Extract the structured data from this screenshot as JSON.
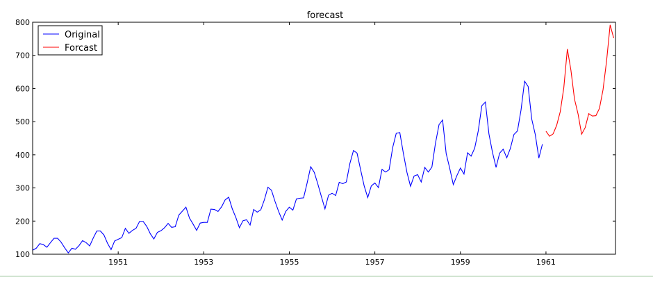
{
  "chart_data": {
    "type": "line",
    "title": "forecast",
    "xlabel": "",
    "ylabel": "",
    "xlim": [
      1949.0,
      1962.625
    ],
    "ylim": [
      100,
      800
    ],
    "x_ticks": [
      1951,
      1953,
      1955,
      1957,
      1959,
      1961
    ],
    "x_tick_labels": [
      "1951",
      "1953",
      "1955",
      "1957",
      "1959",
      "1961"
    ],
    "y_ticks": [
      100,
      200,
      300,
      400,
      500,
      600,
      700,
      800
    ],
    "y_tick_labels": [
      "100",
      "200",
      "300",
      "400",
      "500",
      "600",
      "700",
      "800"
    ],
    "grid": false,
    "legend_position": "top-left",
    "series": [
      {
        "name": "Original",
        "color": "#0000ff",
        "x_start": 1949.0,
        "x_step": 0.0833333,
        "values": [
          112,
          118,
          132,
          129,
          121,
          135,
          148,
          148,
          136,
          119,
          104,
          118,
          115,
          126,
          141,
          135,
          125,
          149,
          170,
          170,
          158,
          133,
          114,
          140,
          145,
          150,
          178,
          163,
          172,
          178,
          199,
          199,
          184,
          162,
          146,
          166,
          171,
          180,
          193,
          181,
          183,
          218,
          230,
          242,
          209,
          191,
          172,
          194,
          196,
          196,
          236,
          235,
          229,
          243,
          264,
          272,
          237,
          211,
          180,
          201,
          204,
          188,
          235,
          227,
          234,
          264,
          302,
          293,
          259,
          229,
          203,
          229,
          242,
          233,
          267,
          269,
          270,
          315,
          364,
          347,
          312,
          274,
          237,
          278,
          284,
          277,
          317,
          313,
          318,
          374,
          413,
          405,
          355,
          306,
          271,
          306,
          315,
          301,
          356,
          348,
          355,
          422,
          465,
          467,
          404,
          347,
          305,
          336,
          340,
          318,
          362,
          348,
          363,
          435,
          491,
          505,
          404,
          359,
          310,
          337,
          360,
          342,
          406,
          396,
          420,
          472,
          548,
          559,
          463,
          407,
          362,
          405,
          417,
          391,
          419,
          461,
          472,
          535,
          622,
          606,
          508,
          461,
          390,
          432
        ]
      },
      {
        "name": "Forcast",
        "color": "#ff0000",
        "x_start": 1961.0,
        "x_step": 0.0833333,
        "values": [
          471,
          456,
          463,
          489,
          530,
          602,
          719,
          655,
          568,
          523,
          462,
          482,
          524,
          517,
          518,
          540,
          596,
          683,
          792,
          752
        ]
      }
    ]
  }
}
